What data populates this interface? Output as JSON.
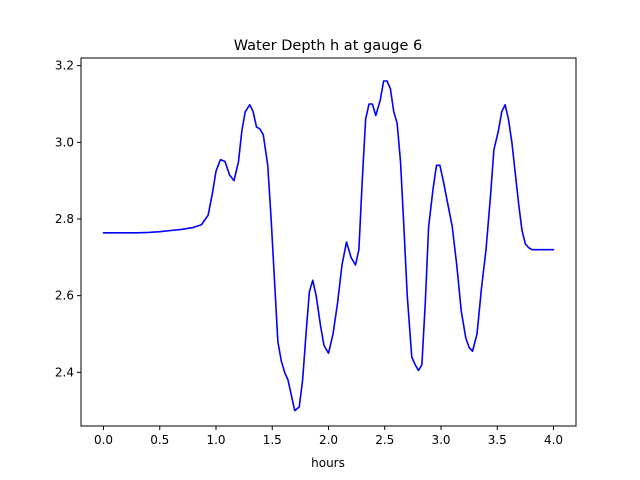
{
  "chart_data": {
    "type": "line",
    "title": "Water Depth h at gauge 6",
    "xlabel": "hours",
    "ylabel": "",
    "xlim": [
      -0.2,
      4.2
    ],
    "ylim": [
      2.26,
      3.22
    ],
    "xticks": [
      0.0,
      0.5,
      1.0,
      1.5,
      2.0,
      2.5,
      3.0,
      3.5,
      4.0
    ],
    "xtick_labels": [
      "0.0",
      "0.5",
      "1.0",
      "1.5",
      "2.0",
      "2.5",
      "3.0",
      "3.5",
      "4.0"
    ],
    "yticks": [
      2.4,
      2.6,
      2.8,
      3.0,
      3.2
    ],
    "ytick_labels": [
      "2.4",
      "2.6",
      "2.8",
      "3.0",
      "3.2"
    ],
    "grid": false,
    "legend": "none",
    "series": [
      {
        "color": "#0000ff",
        "x": [
          0.0,
          0.1,
          0.2,
          0.3,
          0.4,
          0.5,
          0.6,
          0.7,
          0.8,
          0.87,
          0.93,
          0.97,
          1.0,
          1.04,
          1.08,
          1.12,
          1.16,
          1.2,
          1.23,
          1.26,
          1.3,
          1.33,
          1.36,
          1.39,
          1.42,
          1.46,
          1.49,
          1.52,
          1.55,
          1.58,
          1.61,
          1.64,
          1.67,
          1.7,
          1.74,
          1.77,
          1.8,
          1.83,
          1.86,
          1.89,
          1.93,
          1.96,
          2.0,
          2.04,
          2.08,
          2.12,
          2.16,
          2.2,
          2.24,
          2.27,
          2.3,
          2.33,
          2.36,
          2.39,
          2.42,
          2.46,
          2.49,
          2.52,
          2.55,
          2.58,
          2.61,
          2.64,
          2.67,
          2.7,
          2.74,
          2.77,
          2.8,
          2.83,
          2.86,
          2.89,
          2.93,
          2.96,
          2.99,
          3.02,
          3.06,
          3.1,
          3.14,
          3.18,
          3.22,
          3.25,
          3.28,
          3.32,
          3.36,
          3.4,
          3.44,
          3.47,
          3.51,
          3.54,
          3.57,
          3.6,
          3.63,
          3.66,
          3.69,
          3.72,
          3.75,
          3.78,
          3.81,
          3.84,
          3.87,
          3.91,
          3.95,
          4.0
        ],
        "y": [
          2.764,
          2.764,
          2.764,
          2.764,
          2.765,
          2.767,
          2.77,
          2.773,
          2.778,
          2.785,
          2.81,
          2.87,
          2.925,
          2.955,
          2.95,
          2.915,
          2.9,
          2.95,
          3.03,
          3.08,
          3.098,
          3.08,
          3.04,
          3.035,
          3.02,
          2.94,
          2.8,
          2.64,
          2.48,
          2.43,
          2.4,
          2.38,
          2.34,
          2.3,
          2.31,
          2.38,
          2.5,
          2.61,
          2.64,
          2.6,
          2.52,
          2.47,
          2.45,
          2.5,
          2.58,
          2.68,
          2.74,
          2.7,
          2.68,
          2.72,
          2.9,
          3.06,
          3.1,
          3.1,
          3.07,
          3.11,
          3.16,
          3.16,
          3.14,
          3.08,
          3.05,
          2.95,
          2.78,
          2.6,
          2.44,
          2.42,
          2.405,
          2.42,
          2.58,
          2.78,
          2.88,
          2.94,
          2.94,
          2.9,
          2.84,
          2.78,
          2.68,
          2.56,
          2.49,
          2.465,
          2.455,
          2.5,
          2.62,
          2.72,
          2.86,
          2.98,
          3.03,
          3.08,
          3.098,
          3.06,
          3.0,
          2.92,
          2.84,
          2.77,
          2.735,
          2.725,
          2.72,
          2.72,
          2.72,
          2.72,
          2.72,
          2.72
        ]
      }
    ]
  }
}
